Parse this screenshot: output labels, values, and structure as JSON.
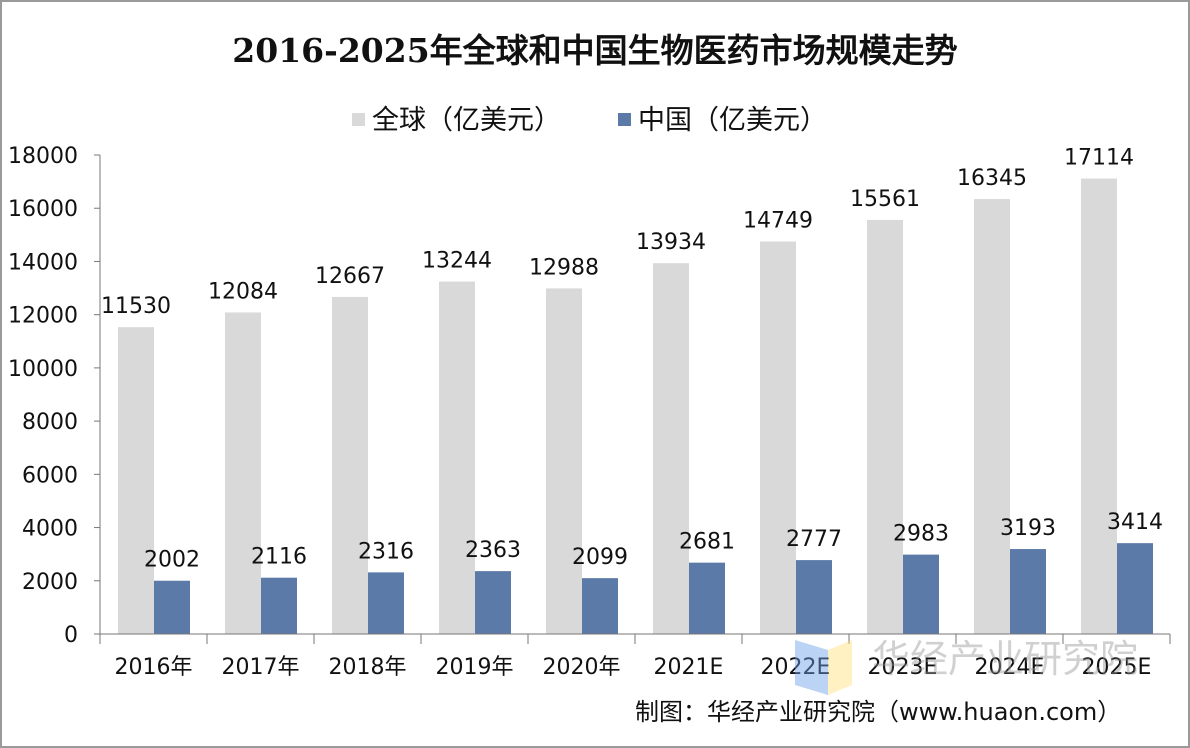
{
  "chart_data": {
    "type": "bar",
    "title": "2016-2025年全球和中国生物医药市场规模走势",
    "categories": [
      "2016年",
      "2017年",
      "2018年",
      "2019年",
      "2020年",
      "2021E",
      "2022E",
      "2023E",
      "2024E",
      "2025E"
    ],
    "series": [
      {
        "name": "全球（亿美元）",
        "color": "#d9d9d9",
        "values": [
          11530,
          12084,
          12667,
          13244,
          12988,
          13934,
          14749,
          15561,
          16345,
          17114
        ]
      },
      {
        "name": "中国（亿美元）",
        "color": "#5b7aa8",
        "values": [
          2002,
          2116,
          2316,
          2363,
          2099,
          2681,
          2777,
          2983,
          3193,
          3414
        ]
      }
    ],
    "ylim": [
      0,
      18000
    ],
    "yticks": [
      0,
      2000,
      4000,
      6000,
      8000,
      10000,
      12000,
      14000,
      16000,
      18000
    ],
    "grid": false,
    "legend": "top-center",
    "source": "制图：华经产业研究院（www.huaon.com）",
    "watermark": {
      "text": "华经产业研究院",
      "url": "www.huaon.com"
    }
  }
}
